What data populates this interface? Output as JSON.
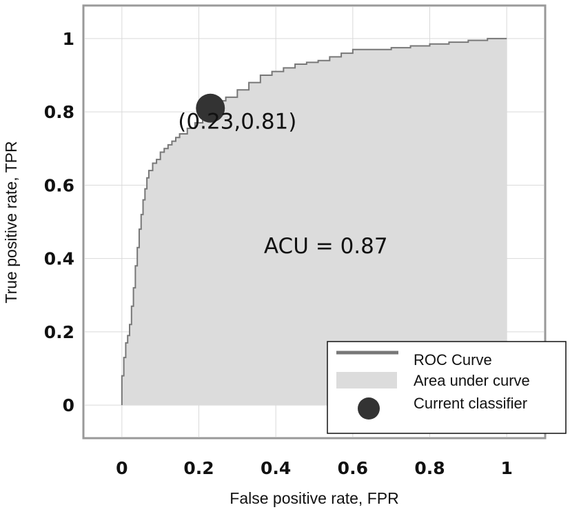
{
  "chart_data": {
    "type": "area",
    "xlabel": "False positive rate, FPR",
    "ylabel": "True positive rate, TPR",
    "xlim": [
      -0.1,
      1.1
    ],
    "ylim": [
      -0.09,
      1.09
    ],
    "xticks": [
      "0",
      "0.2",
      "0.4",
      "0.6",
      "0.8",
      "1"
    ],
    "yticks": [
      "0",
      "0.2",
      "0.4",
      "0.6",
      "0.8",
      "1"
    ],
    "xtick_values": [
      0,
      0.2,
      0.4,
      0.6,
      0.8,
      1
    ],
    "ytick_values": [
      0,
      0.2,
      0.4,
      0.6,
      0.8,
      1
    ],
    "grid": true,
    "legend_position": "bottom-right",
    "series": [
      {
        "name": "ROC Curve",
        "kind": "step-line",
        "color": "#777777",
        "x": [
          0,
          0,
          0.005,
          0.01,
          0.015,
          0.02,
          0.025,
          0.03,
          0.035,
          0.04,
          0.045,
          0.05,
          0.055,
          0.06,
          0.065,
          0.07,
          0.08,
          0.09,
          0.1,
          0.11,
          0.12,
          0.13,
          0.14,
          0.15,
          0.17,
          0.19,
          0.21,
          0.23,
          0.25,
          0.27,
          0.3,
          0.33,
          0.36,
          0.39,
          0.42,
          0.45,
          0.48,
          0.51,
          0.54,
          0.57,
          0.6,
          0.65,
          0.7,
          0.75,
          0.8,
          0.85,
          0.9,
          0.95,
          1
        ],
        "y": [
          0,
          0.08,
          0.13,
          0.17,
          0.19,
          0.22,
          0.27,
          0.32,
          0.38,
          0.43,
          0.48,
          0.52,
          0.56,
          0.59,
          0.62,
          0.64,
          0.66,
          0.67,
          0.69,
          0.7,
          0.71,
          0.72,
          0.73,
          0.74,
          0.755,
          0.77,
          0.79,
          0.81,
          0.83,
          0.84,
          0.86,
          0.88,
          0.9,
          0.91,
          0.92,
          0.93,
          0.935,
          0.94,
          0.95,
          0.96,
          0.97,
          0.97,
          0.975,
          0.98,
          0.985,
          0.99,
          0.995,
          1,
          1
        ]
      },
      {
        "name": "Area under curve",
        "kind": "area",
        "color": "#dcdcdc"
      },
      {
        "name": "Current classifier",
        "kind": "point",
        "color": "#333333",
        "x": [
          0.23
        ],
        "y": [
          0.81
        ]
      }
    ],
    "annotations": [
      {
        "text": "(0.23,0.81)",
        "x": 0.3,
        "y": 0.77
      },
      {
        "text": "ACU = 0.87",
        "x": 0.53,
        "y": 0.43
      }
    ]
  }
}
